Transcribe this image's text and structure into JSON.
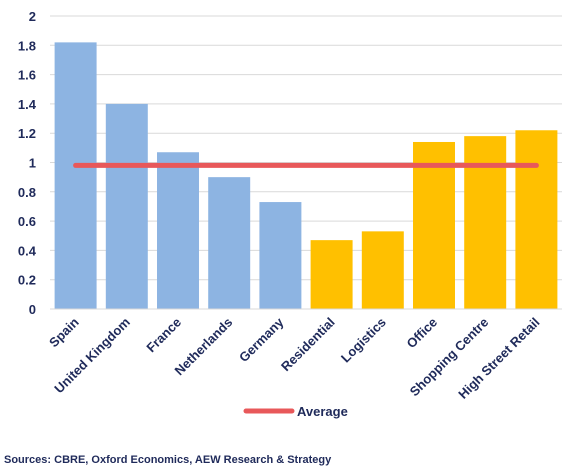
{
  "chart_data": {
    "type": "bar",
    "categories": [
      "Spain",
      "United Kingdom",
      "France",
      "Netherlands",
      "Germany",
      "Residential",
      "Logistics",
      "Office",
      "Shopping Centre",
      "High Street Retail"
    ],
    "values": [
      1.82,
      1.4,
      1.07,
      0.9,
      0.73,
      0.47,
      0.53,
      1.14,
      1.18,
      1.22
    ],
    "bar_colors": [
      "#8db4e2",
      "#8db4e2",
      "#8db4e2",
      "#8db4e2",
      "#8db4e2",
      "#ffc000",
      "#ffc000",
      "#ffc000",
      "#ffc000",
      "#ffc000"
    ],
    "average": {
      "name": "Average",
      "value": 0.98,
      "color": "#e8585a"
    },
    "ylim": [
      0,
      2
    ],
    "yticks": [
      "0",
      "0.2",
      "0.4",
      "0.6",
      "0.8",
      "1",
      "1.2",
      "1.4",
      "1.6",
      "1.8",
      "2"
    ],
    "grid": true,
    "legend_position": "bottom"
  },
  "source": "Sources: CBRE, Oxford Economics, AEW Research & Strategy"
}
